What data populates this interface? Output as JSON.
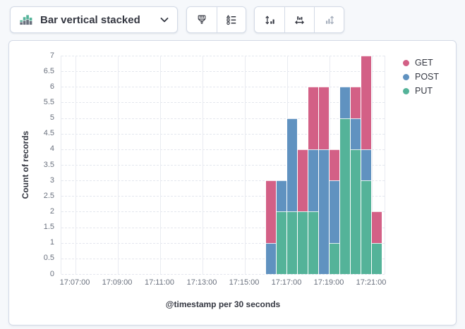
{
  "toolbar": {
    "chart_switcher": {
      "label": "Bar vertical stacked",
      "icon": "bar-vertical-stacked-icon"
    },
    "buttons": [
      {
        "name": "visual-options",
        "icon": "paintbrush-icon",
        "enabled": true
      },
      {
        "name": "legend-settings",
        "icon": "legend-list-icon",
        "enabled": true
      },
      {
        "name": "left-axis-settings",
        "icon": "axis-vertical-expand-icon",
        "enabled": true
      },
      {
        "name": "bottom-axis-settings",
        "icon": "axis-horizontal-expand-icon",
        "enabled": true
      },
      {
        "name": "right-axis-settings",
        "icon": "axis-right-vertical-icon",
        "enabled": false
      }
    ]
  },
  "chart_data": {
    "type": "bar",
    "stacked": true,
    "title": "",
    "xlabel": "@timestamp per 30 seconds",
    "ylabel": "Count of records",
    "ylim": [
      0,
      7
    ],
    "y_ticks": [
      0,
      0.5,
      1,
      1.5,
      2,
      2.5,
      3,
      3.5,
      4,
      4.5,
      5,
      5.5,
      6,
      6.5,
      7
    ],
    "x_ticks": [
      "17:07:00",
      "17:09:00",
      "17:11:00",
      "17:13:00",
      "17:15:00",
      "17:17:00",
      "17:19:00",
      "17:21:00"
    ],
    "bucket_interval_seconds": 30,
    "grid": true,
    "legend_position": "right",
    "categories": [
      "17:16:00",
      "17:16:30",
      "17:17:00",
      "17:17:30",
      "17:18:00",
      "17:18:30",
      "17:19:00",
      "17:19:30",
      "17:20:00",
      "17:20:30",
      "17:21:00"
    ],
    "series": [
      {
        "name": "GET",
        "color": "#D36086",
        "values": [
          2,
          0,
          0,
          2,
          2,
          2,
          1,
          0,
          1,
          3,
          1
        ]
      },
      {
        "name": "POST",
        "color": "#6092C0",
        "values": [
          1,
          1,
          3,
          0,
          2,
          4,
          2,
          1,
          1,
          1,
          0
        ]
      },
      {
        "name": "PUT",
        "color": "#54B399",
        "values": [
          0,
          2,
          2,
          2,
          2,
          0,
          1,
          5,
          4,
          3,
          1
        ]
      }
    ],
    "stack_order_bottom_to_top": [
      "PUT",
      "POST",
      "GET"
    ]
  }
}
